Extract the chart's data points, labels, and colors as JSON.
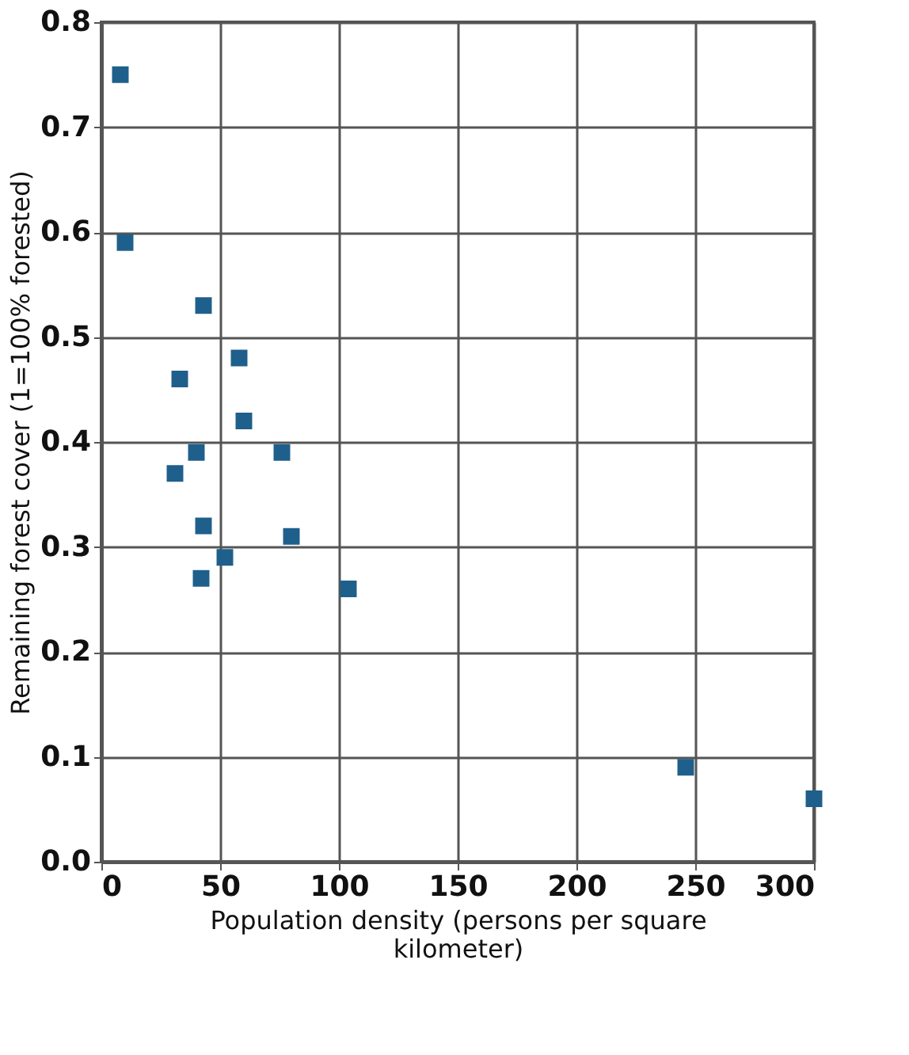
{
  "chart_data": {
    "type": "scatter",
    "xlabel": "Population density (persons per square kilometer)",
    "ylabel": "Remaining forest cover (1=100% forested)",
    "x": [
      8,
      10,
      43,
      33,
      58,
      60,
      40,
      76,
      31,
      43,
      80,
      52,
      42,
      104,
      246,
      300
    ],
    "values": [
      0.75,
      0.59,
      0.53,
      0.46,
      0.48,
      0.42,
      0.39,
      0.39,
      0.37,
      0.32,
      0.31,
      0.29,
      0.27,
      0.26,
      0.09,
      0.06
    ],
    "color": "#1f5f8b",
    "marker": "square",
    "grid": true,
    "xlim": [
      0,
      300
    ],
    "xticks": [
      0,
      50,
      100,
      150,
      200,
      250,
      300
    ],
    "ylim": [
      0,
      0.8
    ],
    "yticks": [
      {
        "value": 0,
        "label": "0.0"
      },
      {
        "value": 0.1,
        "label": "0.1"
      },
      {
        "value": 0.2,
        "label": "0.2"
      },
      {
        "value": 0.3,
        "label": "0.3"
      },
      {
        "value": 0.4,
        "label": "0.4"
      },
      {
        "value": 0.5,
        "label": "0.5"
      },
      {
        "value": 0.6,
        "label": "0.6"
      },
      {
        "value": 0.7,
        "label": "0.7"
      },
      {
        "value": 0.8,
        "label": "0.8"
      }
    ]
  }
}
